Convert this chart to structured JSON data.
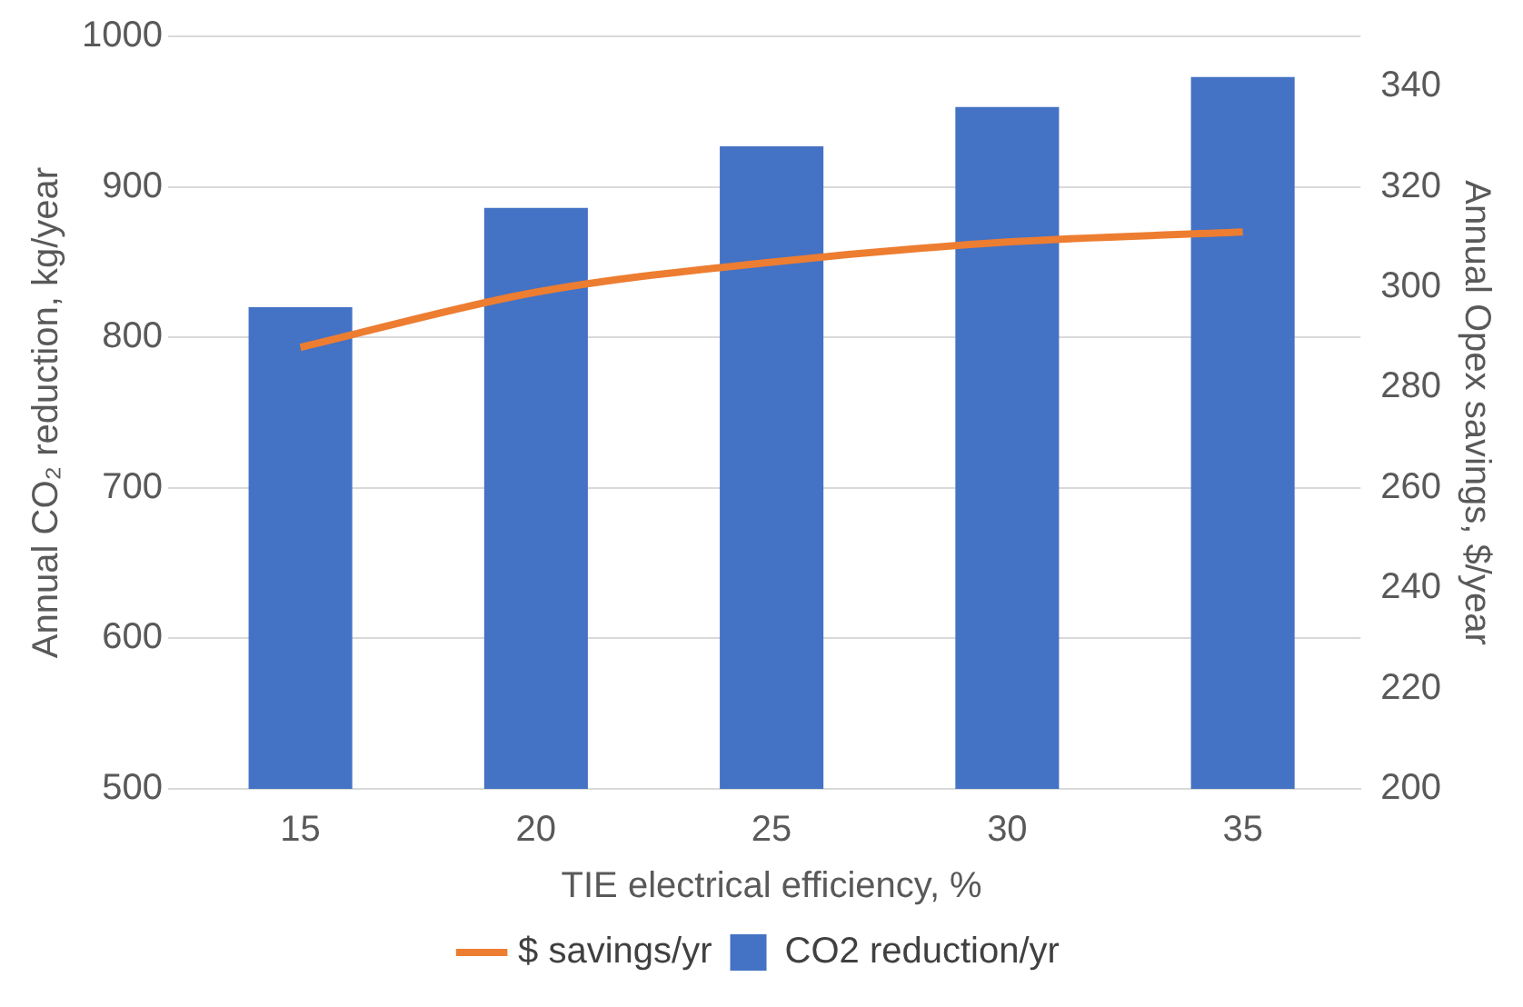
{
  "chart_data": {
    "type": "bar",
    "xlabel": "TIE electrical efficiency, %",
    "ylabel": "Annual CO₂ reduction, kg/year",
    "y2label": "Annual Opex savings, $/year",
    "categories": [
      "15",
      "20",
      "25",
      "30",
      "35"
    ],
    "series": [
      {
        "name": "CO2 reduction/yr",
        "color": "#4472c4",
        "values": [
          820,
          886,
          927,
          953,
          973
        ]
      },
      {
        "name": "$ savings/yr",
        "type": "line",
        "axis": "y2",
        "color": "#ed7d31",
        "values": [
          288,
          299,
          305,
          309,
          311
        ]
      }
    ],
    "ylim": [
      500,
      1000
    ],
    "yticks": [
      500,
      600,
      700,
      800,
      900,
      1000
    ],
    "y2lim": [
      200,
      350
    ],
    "y2ticks": [
      200,
      220,
      240,
      260,
      280,
      300,
      320,
      340
    ],
    "grid": "y",
    "legend": "bottom",
    "marker": "none"
  }
}
